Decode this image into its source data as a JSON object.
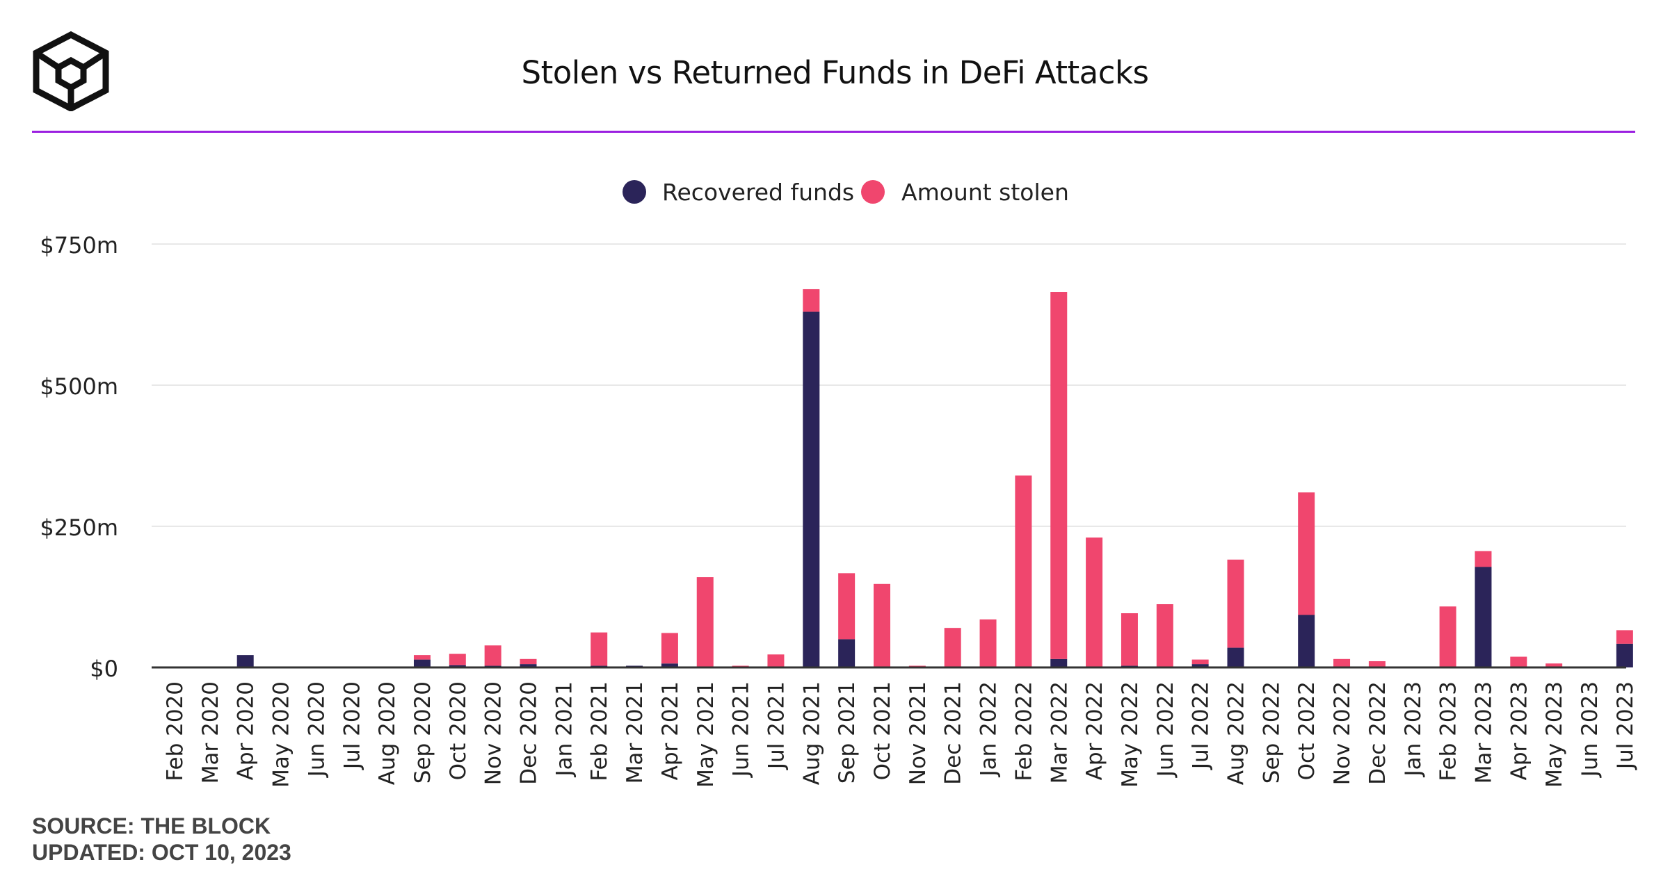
{
  "header": {
    "title": "Stolen vs Returned Funds in DeFi Attacks",
    "logo_name": "the-block-logo"
  },
  "footer": {
    "source": "SOURCE: THE BLOCK",
    "updated": "UPDATED: OCT 10, 2023"
  },
  "colors": {
    "recovered": "#2b2459",
    "stolen": "#f0466e",
    "divider": "#9b1fe0",
    "grid": "#e8e8e8",
    "axis": "#333333"
  },
  "chart_data": {
    "type": "bar",
    "stacked": true,
    "title": "Stolen vs Returned Funds in DeFi Attacks",
    "xlabel": "",
    "ylabel": "",
    "ylim": [
      0,
      750
    ],
    "y_ticks": [
      0,
      250,
      500,
      750
    ],
    "y_tick_labels": [
      "$0",
      "$250m",
      "$500m",
      "$750m"
    ],
    "grid": true,
    "legend_position": "top-center",
    "categories": [
      "Feb 2020",
      "Mar 2020",
      "Apr 2020",
      "May 2020",
      "Jun 2020",
      "Jul 2020",
      "Aug 2020",
      "Sep 2020",
      "Oct 2020",
      "Nov 2020",
      "Dec 2020",
      "Jan 2021",
      "Feb 2021",
      "Mar 2021",
      "Apr 2021",
      "May 2021",
      "Jun 2021",
      "Jul 2021",
      "Aug 2021",
      "Sep 2021",
      "Oct 2021",
      "Nov 2021",
      "Dec 2021",
      "Jan 2022",
      "Feb 2022",
      "Mar 2022",
      "Apr 2022",
      "May 2022",
      "Jun 2022",
      "Jul 2022",
      "Aug 2022",
      "Sep 2022",
      "Oct 2022",
      "Nov 2022",
      "Dec 2022",
      "Jan 2023",
      "Feb 2023",
      "Mar 2023",
      "Apr 2023",
      "May 2023",
      "Jun 2023",
      "Jul 2023"
    ],
    "series": [
      {
        "name": "Recovered funds",
        "color": "#2b2459",
        "values": [
          0,
          0,
          22,
          0,
          0,
          0,
          0,
          14,
          4,
          3,
          6,
          0,
          3,
          3,
          7,
          0,
          0,
          0,
          630,
          50,
          0,
          0,
          0,
          0,
          0,
          15,
          0,
          3,
          0,
          6,
          35,
          0,
          93,
          0,
          0,
          0,
          0,
          178,
          0,
          0,
          0,
          42
        ]
      },
      {
        "name": "Amount stolen",
        "color": "#f0466e",
        "values": [
          0,
          0,
          0,
          0,
          0,
          0,
          0,
          8,
          20,
          36,
          9,
          0,
          59,
          0,
          54,
          160,
          3,
          23,
          40,
          117,
          148,
          3,
          70,
          85,
          340,
          650,
          230,
          93,
          112,
          8,
          156,
          0,
          217,
          15,
          11,
          0,
          108,
          28,
          19,
          7,
          0,
          24
        ]
      }
    ]
  }
}
